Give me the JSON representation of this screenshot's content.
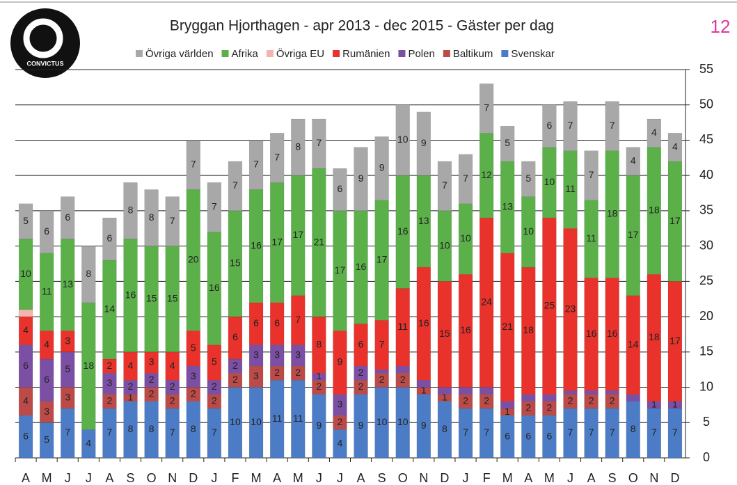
{
  "logo": "CONVICTUS",
  "page_number": "12",
  "chart_data": {
    "type": "stacked_bar",
    "title": "Bryggan Hjorthagen - apr 2013 - dec 2015 - Gäster per dag",
    "categories": [
      "A",
      "M",
      "J",
      "J",
      "A",
      "S",
      "O",
      "N",
      "D",
      "J",
      "F",
      "M",
      "A",
      "M",
      "J",
      "J",
      "A",
      "S",
      "O",
      "N",
      "D",
      "J",
      "F",
      "M",
      "A",
      "M",
      "J",
      "A",
      "S",
      "O",
      "N",
      "D"
    ],
    "ylim": [
      0,
      55
    ],
    "yticks": [
      0,
      5,
      10,
      15,
      20,
      25,
      30,
      35,
      40,
      45,
      50,
      55
    ],
    "grid": true,
    "axis_side": "right",
    "legend": "top",
    "series": [
      {
        "name": "Svenskar",
        "color": "#4d7cc6",
        "values": [
          6,
          5,
          7,
          4,
          7,
          8,
          8,
          7,
          8,
          7,
          10,
          10,
          11,
          11,
          9,
          4,
          9,
          10,
          10,
          9,
          8,
          7,
          7,
          6,
          6,
          6,
          7,
          7,
          7,
          8,
          7,
          7
        ],
        "value_labels": [
          "6",
          "5",
          "7",
          "4",
          "7",
          "8",
          "8",
          "7",
          "8",
          "7",
          "10",
          "10",
          "11",
          "11",
          "9",
          "4",
          "9",
          "10",
          "10",
          "9",
          "8",
          "7",
          "7",
          "6",
          "6",
          "6",
          "7",
          "7",
          "7",
          "8",
          "7",
          "7"
        ]
      },
      {
        "name": "Baltikum",
        "color": "#bb4b48",
        "values": [
          4,
          3,
          3,
          0,
          2,
          1,
          2,
          2,
          2,
          2,
          2,
          3,
          2,
          2,
          2,
          2,
          2,
          2,
          2,
          1,
          1,
          2,
          2,
          1,
          2,
          2,
          2,
          2,
          2,
          0,
          0,
          0
        ],
        "value_labels": [
          "4",
          "3",
          "3",
          null,
          "2",
          "1",
          "2",
          "2",
          "2",
          "2",
          "2",
          "3",
          "2",
          "2",
          "2",
          "2",
          "2",
          "2",
          "2",
          "1",
          "1",
          "2",
          "2",
          "1",
          "2",
          "2",
          "2",
          "2",
          "2",
          null,
          null,
          null
        ]
      },
      {
        "name": "Polen",
        "color": "#7b4fa3",
        "values": [
          6,
          6,
          5,
          0,
          3,
          2,
          2,
          2,
          3,
          2,
          2,
          3,
          3,
          3,
          1,
          3,
          2,
          0.5,
          1,
          1,
          1,
          1,
          1,
          1,
          1,
          1,
          0.5,
          0.5,
          0.5,
          1,
          1,
          1
        ],
        "value_labels": [
          "6",
          "6",
          "5",
          null,
          "3",
          "2",
          "2",
          "2",
          "3",
          "2",
          "2",
          "3",
          "3",
          "3",
          "1",
          "3",
          "2",
          null,
          null,
          null,
          null,
          null,
          null,
          null,
          null,
          null,
          null,
          null,
          null,
          null,
          "1",
          "1"
        ]
      },
      {
        "name": "Rumänien",
        "color": "#e8322b",
        "values": [
          4,
          4,
          3,
          0,
          2,
          4,
          3,
          4,
          5,
          5,
          6,
          6,
          6,
          7,
          8,
          9,
          6,
          7,
          11,
          16,
          15,
          16,
          24,
          21,
          18,
          25,
          23,
          16,
          16,
          14,
          18,
          17
        ],
        "value_labels": [
          "4",
          "4",
          "3",
          null,
          "2",
          "4",
          "3",
          "4",
          "5",
          "5",
          "6",
          "6",
          "6",
          "7",
          "8",
          "9",
          "6",
          "7",
          "11",
          "16",
          "15",
          "16",
          "24",
          "21",
          "18",
          "25",
          "23",
          "16",
          "16",
          "14",
          "18",
          "17"
        ]
      },
      {
        "name": "Övriga EU",
        "color": "#f2b4ae",
        "values": [
          1,
          0,
          0,
          0,
          0,
          0,
          0,
          0,
          0,
          0,
          0,
          0,
          0,
          0,
          0,
          0,
          0,
          0,
          0,
          0,
          0,
          0,
          0,
          0,
          0,
          0,
          0,
          0,
          0,
          0,
          0,
          0
        ]
      },
      {
        "name": "Afrika",
        "color": "#5bb04a",
        "values": [
          10,
          11,
          13,
          18,
          14,
          16,
          15,
          15,
          20,
          16,
          15,
          16,
          17,
          17,
          21,
          17,
          16,
          17,
          16,
          13,
          10,
          10,
          12,
          13,
          10,
          10,
          11,
          11,
          18,
          17,
          18,
          17
        ],
        "value_labels": [
          "10",
          "11",
          "13",
          "18",
          "14",
          "16",
          "15",
          "15",
          "20",
          "16",
          "15",
          "16",
          "17",
          "17",
          "21",
          "17",
          "16",
          "17",
          "16",
          "13",
          "10",
          "10",
          "12",
          "13",
          "10",
          "10",
          "11",
          "11",
          "18",
          "17",
          "18",
          "17"
        ]
      },
      {
        "name": "Övriga världen",
        "color": "#a8a8a8",
        "values": [
          5,
          6,
          6,
          8,
          6,
          8,
          8,
          7,
          7,
          7,
          7,
          7,
          7,
          8,
          7,
          6,
          9,
          9,
          10,
          9,
          7,
          7,
          7,
          5,
          5,
          6,
          7,
          7,
          7,
          4,
          4,
          4
        ],
        "value_labels": [
          "5",
          "6",
          "6",
          "8",
          "6",
          "8",
          "8",
          "7",
          "7",
          "7",
          "7",
          "7",
          "7",
          "8",
          "7",
          "6",
          "9",
          "9",
          "10",
          "9",
          "7",
          "7",
          "7",
          "5",
          "5",
          "6",
          "7",
          "7",
          "7",
          "4",
          "4",
          "4"
        ]
      }
    ]
  }
}
